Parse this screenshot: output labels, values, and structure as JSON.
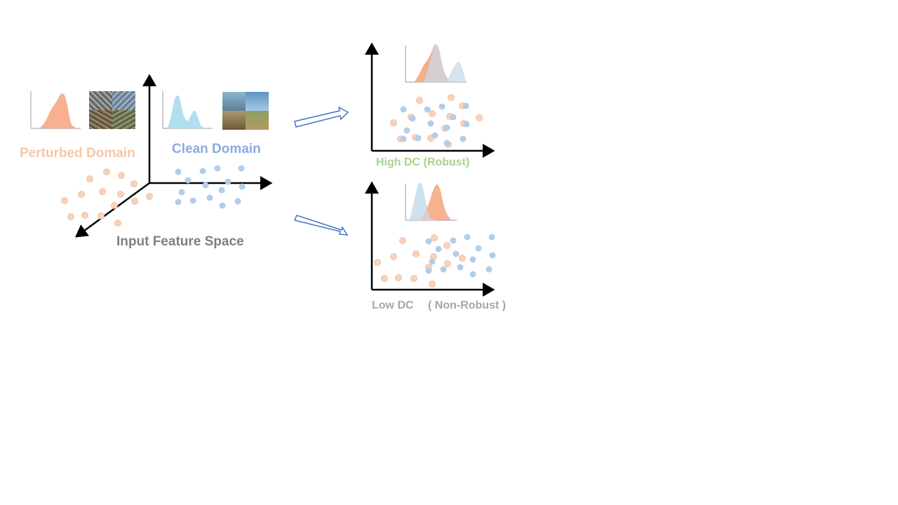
{
  "labels": {
    "perturbed_domain": "Perturbed Domain",
    "clean_domain": "Clean Domain",
    "input_space": "Input Feature Space",
    "high_dc": "High DC (Robust)",
    "low_dc": "Low DC 　( Non-Robust )"
  },
  "colors": {
    "perturbed": "#f8c9ab",
    "perturbed_dark": "#f4a47e",
    "clean": "#b3cde8",
    "clean_curve": "#a9dcef",
    "perturbed_label": "#f7c6a6",
    "clean_label": "#8eaadb",
    "input_label": "#7f7f7f",
    "high_label": "#a9d18e",
    "low_label": "#a6a6a6",
    "arrow_outline": "#4472c4"
  },
  "images": {
    "perturbed_thumb": "noisy-goose-photo-grid",
    "clean_thumb": "clean-goose-photo-grid"
  }
}
